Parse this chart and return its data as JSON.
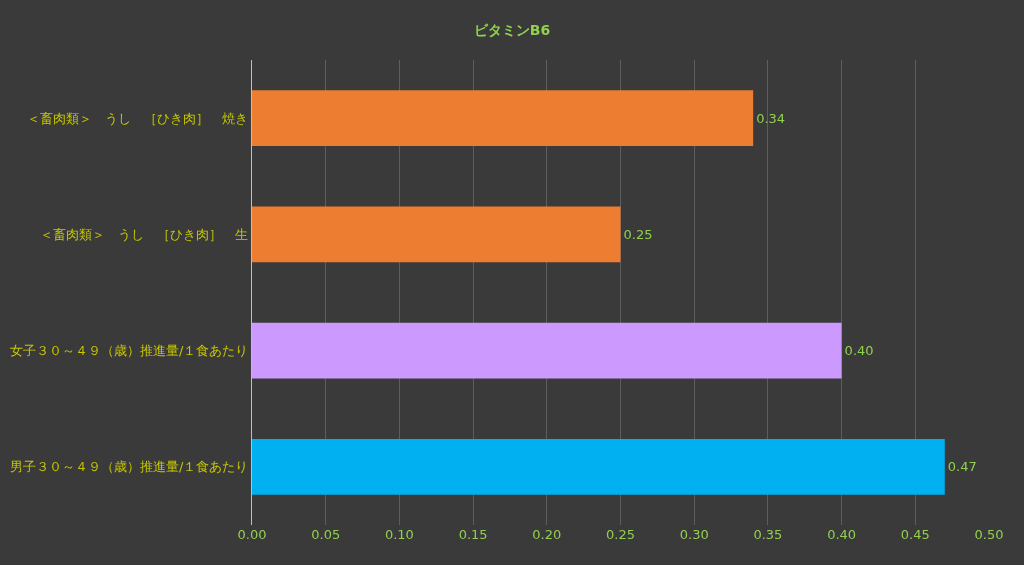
{
  "chart_data": {
    "type": "bar",
    "orientation": "horizontal",
    "title": "ビタミンB6",
    "categories": [
      "＜畜肉類＞　うし　［ひき肉］　焼き",
      "＜畜肉類＞　うし　［ひき肉］　生",
      "女子３０～４９（歳）推進量/１食あたり",
      "男子３０～４９（歳）推進量/１食あたり"
    ],
    "values": [
      0.34,
      0.25,
      0.4,
      0.47
    ],
    "value_labels": [
      "0.34",
      "0.25",
      "0.40",
      "0.47"
    ],
    "colors": [
      "#ed7d31",
      "#ed7d31",
      "#cc99ff",
      "#00b0f0"
    ],
    "xlim": [
      0,
      0.5
    ],
    "xticks": [
      {
        "value": 0,
        "label": "0.00"
      },
      {
        "value": 0.05,
        "label": "0.05"
      },
      {
        "value": 0.1,
        "label": "0.10"
      },
      {
        "value": 0.15,
        "label": "0.15"
      },
      {
        "value": 0.2,
        "label": "0.20"
      },
      {
        "value": 0.25,
        "label": "0.25"
      },
      {
        "value": 0.3,
        "label": "0.30"
      },
      {
        "value": 0.35,
        "label": "0.35"
      },
      {
        "value": 0.4,
        "label": "0.40"
      },
      {
        "value": 0.45,
        "label": "0.45"
      },
      {
        "value": 0.5,
        "label": "0.50"
      }
    ],
    "grid": "x",
    "legend": false
  }
}
